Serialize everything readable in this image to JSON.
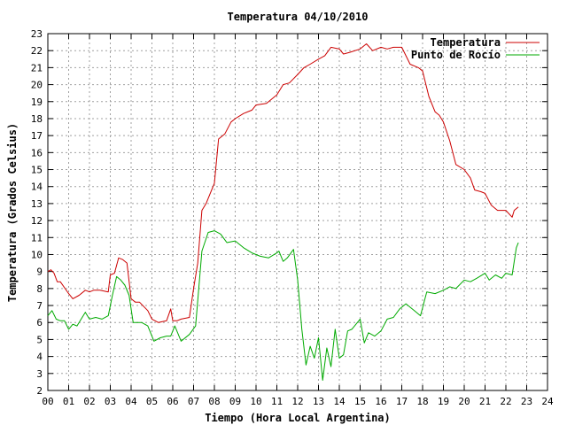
{
  "chart_data": {
    "type": "line",
    "title": "Temperatura 04/10/2010",
    "xlabel": "Tiempo (Hora Local Argentina)",
    "ylabel": "Temperatura (Grados Celsius)",
    "xlim": [
      0,
      24
    ],
    "ylim": [
      2,
      23
    ],
    "xticks": [
      0,
      1,
      2,
      3,
      4,
      5,
      6,
      7,
      8,
      9,
      10,
      11,
      12,
      13,
      14,
      15,
      16,
      17,
      18,
      19,
      20,
      21,
      22,
      23,
      24
    ],
    "xtick_labels": [
      "00",
      "01",
      "02",
      "03",
      "04",
      "05",
      "06",
      "07",
      "08",
      "09",
      "10",
      "11",
      "12",
      "13",
      "14",
      "15",
      "16",
      "17",
      "18",
      "19",
      "20",
      "21",
      "22",
      "23",
      "24"
    ],
    "yticks": [
      2,
      3,
      4,
      5,
      6,
      7,
      8,
      9,
      10,
      11,
      12,
      13,
      14,
      15,
      16,
      17,
      18,
      19,
      20,
      21,
      22,
      23
    ],
    "grid": true,
    "legend_position": "top-right",
    "series": [
      {
        "name": "Temperatura",
        "color": "#cc0000",
        "x": [
          0,
          0.15,
          0.3,
          0.45,
          0.6,
          1.0,
          1.2,
          1.5,
          1.8,
          2.0,
          2.2,
          2.5,
          2.9,
          3.0,
          3.2,
          3.4,
          3.6,
          3.8,
          4.0,
          4.2,
          4.4,
          4.8,
          5.0,
          5.3,
          5.7,
          5.9,
          6.0,
          6.2,
          6.4,
          6.8,
          7.0,
          7.2,
          7.4,
          7.6,
          8.0,
          8.2,
          8.5,
          8.8,
          9.0,
          9.4,
          9.8,
          10.0,
          10.5,
          11.0,
          11.3,
          11.6,
          12.0,
          12.3,
          12.6,
          13.0,
          13.3,
          13.6,
          14.0,
          14.2,
          14.5,
          15.0,
          15.3,
          15.6,
          16.0,
          16.3,
          16.6,
          17.0,
          17.4,
          17.8,
          18.0,
          18.3,
          18.6,
          18.8,
          19.0,
          19.3,
          19.6,
          20.0,
          20.3,
          20.5,
          20.8,
          21.0,
          21.3,
          21.6,
          22.0,
          22.3,
          22.4,
          22.6
        ],
        "values": [
          9.0,
          9.1,
          8.9,
          8.4,
          8.4,
          7.7,
          7.4,
          7.6,
          7.9,
          7.8,
          7.9,
          7.9,
          7.8,
          8.8,
          8.9,
          9.8,
          9.7,
          9.5,
          7.4,
          7.2,
          7.2,
          6.7,
          6.2,
          6.0,
          6.1,
          6.8,
          6.1,
          6.1,
          6.2,
          6.3,
          8.0,
          9.5,
          12.6,
          13.0,
          14.2,
          16.8,
          17.1,
          17.8,
          18.0,
          18.3,
          18.5,
          18.8,
          18.9,
          19.4,
          20.0,
          20.1,
          20.6,
          21.0,
          21.2,
          21.5,
          21.7,
          22.2,
          22.1,
          21.8,
          21.9,
          22.1,
          22.4,
          22.0,
          22.2,
          22.1,
          22.2,
          22.2,
          21.2,
          21.0,
          20.8,
          19.3,
          18.4,
          18.2,
          17.8,
          16.7,
          15.3,
          15.0,
          14.5,
          13.8,
          13.7,
          13.6,
          12.9,
          12.6,
          12.6,
          12.2,
          12.6,
          12.8
        ]
      },
      {
        "name": "Punto de Rocío",
        "color": "#00aa00",
        "x": [
          0,
          0.2,
          0.4,
          0.6,
          0.8,
          1.0,
          1.2,
          1.4,
          1.6,
          1.8,
          2.0,
          2.3,
          2.6,
          2.9,
          3.1,
          3.3,
          3.5,
          3.7,
          3.9,
          4.1,
          4.5,
          4.8,
          5.1,
          5.4,
          5.7,
          5.9,
          6.1,
          6.4,
          6.8,
          7.1,
          7.4,
          7.7,
          8.0,
          8.3,
          8.6,
          9.0,
          9.4,
          9.8,
          10.2,
          10.6,
          11.0,
          11.1,
          11.3,
          11.5,
          11.8,
          12.0,
          12.2,
          12.4,
          12.6,
          12.8,
          13.0,
          13.2,
          13.4,
          13.6,
          13.8,
          14.0,
          14.2,
          14.4,
          14.6,
          15.0,
          15.2,
          15.4,
          15.7,
          16.0,
          16.3,
          16.6,
          16.9,
          17.2,
          17.6,
          17.9,
          18.2,
          18.6,
          19.0,
          19.3,
          19.6,
          20.0,
          20.3,
          20.6,
          21.0,
          21.2,
          21.5,
          21.8,
          22.0,
          22.3,
          22.5,
          22.6
        ],
        "values": [
          6.4,
          6.7,
          6.2,
          6.1,
          6.1,
          5.6,
          5.9,
          5.8,
          6.2,
          6.6,
          6.2,
          6.3,
          6.2,
          6.4,
          7.6,
          8.7,
          8.5,
          8.2,
          7.6,
          6.0,
          6.0,
          5.8,
          4.9,
          5.1,
          5.2,
          5.2,
          5.8,
          4.9,
          5.3,
          5.8,
          10.2,
          11.3,
          11.4,
          11.2,
          10.7,
          10.8,
          10.4,
          10.1,
          9.9,
          9.8,
          10.1,
          10.2,
          9.6,
          9.8,
          10.3,
          8.5,
          5.6,
          3.5,
          4.6,
          3.9,
          5.1,
          2.6,
          4.5,
          3.4,
          5.6,
          3.9,
          4.1,
          5.5,
          5.6,
          6.2,
          4.8,
          5.4,
          5.2,
          5.5,
          6.2,
          6.3,
          6.8,
          7.1,
          6.7,
          6.4,
          7.8,
          7.7,
          7.9,
          8.1,
          8.0,
          8.5,
          8.4,
          8.6,
          8.9,
          8.5,
          8.8,
          8.6,
          8.9,
          8.8,
          10.4,
          10.7
        ]
      }
    ]
  }
}
